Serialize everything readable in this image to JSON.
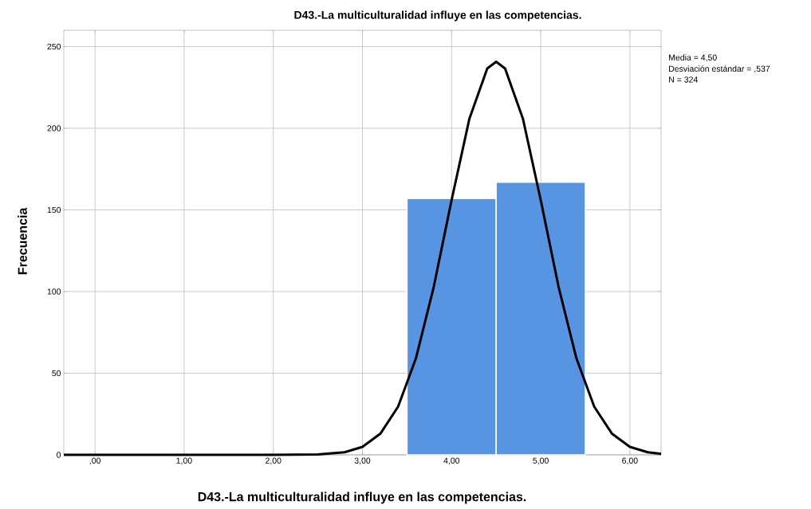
{
  "chart_data": {
    "type": "histogram",
    "title": "D43.-La multiculturalidad influye en las competencias.",
    "xlabel": "D43.-La multiculturalidad influye en las competencias.",
    "ylabel": "Frecuencia",
    "bins": [
      3.5,
      4.5,
      5.5
    ],
    "values": [
      157,
      167
    ],
    "color": "#5795e2",
    "series": [
      {
        "type": "line",
        "color": "#000000",
        "x": [
          -0.35,
          0.5,
          1.5,
          2.0,
          2.5,
          2.8,
          3.0,
          3.2,
          3.4,
          3.6,
          3.8,
          4.0,
          4.2,
          4.4,
          4.5,
          4.6,
          4.8,
          5.0,
          5.2,
          5.4,
          5.6,
          5.8,
          6.0,
          6.2,
          6.35
        ],
        "values": [
          0,
          0,
          0,
          0,
          0.2,
          1.6,
          4.9,
          12.9,
          29.5,
          59.1,
          102.9,
          156,
          205.9,
          236.6,
          240.7,
          236.6,
          205.9,
          156,
          102.9,
          59.1,
          29.5,
          12.9,
          4.9,
          1.6,
          0.6
        ]
      }
    ],
    "xlim": [
      -0.35,
      6.35
    ],
    "ylim": [
      0,
      260
    ],
    "xticks": [
      {
        "value": 0,
        "label": ",00"
      },
      {
        "value": 1,
        "label": "1,00"
      },
      {
        "value": 2,
        "label": "2,00"
      },
      {
        "value": 3,
        "label": "3,00"
      },
      {
        "value": 4,
        "label": "4,00"
      },
      {
        "value": 5,
        "label": "5,00"
      },
      {
        "value": 6,
        "label": "6,00"
      }
    ],
    "yticks": [
      0,
      50,
      100,
      150,
      200,
      250
    ],
    "grid": true,
    "annotations": [
      "Media = 4,50",
      "Desviación estándar = ,537",
      "N = 324"
    ]
  }
}
